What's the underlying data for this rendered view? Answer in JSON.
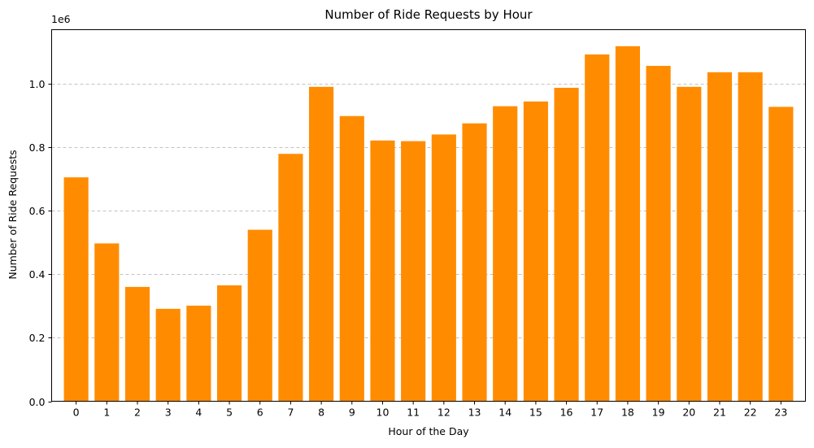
{
  "chart_data": {
    "type": "bar",
    "title": "Number of Ride Requests by Hour",
    "xlabel": "Hour of the Day",
    "ylabel": "Number of Ride Requests",
    "y_offset_text": "1e6",
    "ylim": [
      0,
      1.17
    ],
    "yticks": [
      "0.0",
      "0.2",
      "0.4",
      "0.6",
      "0.8",
      "1.0"
    ],
    "ytick_values": [
      0,
      0.2,
      0.4,
      0.6,
      0.8,
      1.0
    ],
    "categories": [
      "0",
      "1",
      "2",
      "3",
      "4",
      "5",
      "6",
      "7",
      "8",
      "9",
      "10",
      "11",
      "12",
      "13",
      "14",
      "15",
      "16",
      "17",
      "18",
      "19",
      "20",
      "21",
      "22",
      "23"
    ],
    "values": [
      0.705,
      0.497,
      0.36,
      0.291,
      0.301,
      0.365,
      0.54,
      0.779,
      0.99,
      0.898,
      0.821,
      0.819,
      0.84,
      0.875,
      0.929,
      0.944,
      0.987,
      1.092,
      1.118,
      1.056,
      0.99,
      1.036,
      1.036,
      0.927
    ],
    "grid": "y-dashed",
    "bar_color": "#ff8c00"
  }
}
